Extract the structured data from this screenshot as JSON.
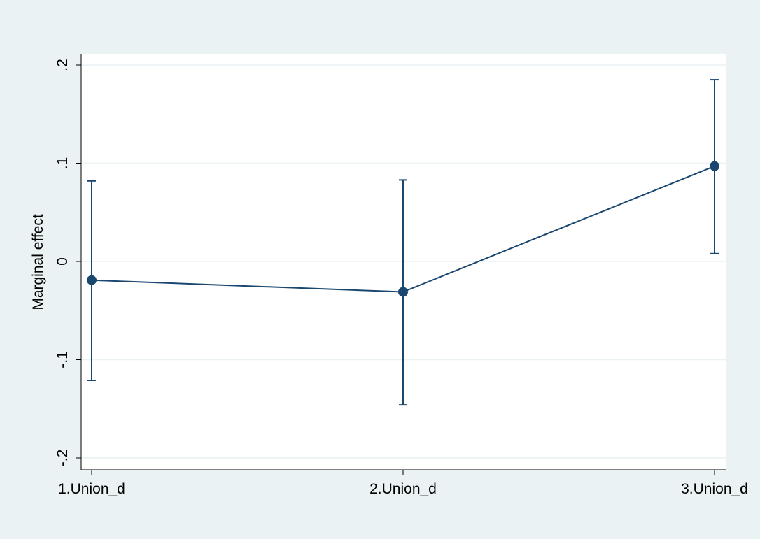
{
  "chart_data": {
    "type": "line",
    "title": "",
    "xlabel": "",
    "ylabel": "Marginal effect",
    "categories": [
      "1.Union_d",
      "2.Union_d",
      "3.Union_d"
    ],
    "series": [
      {
        "values": [
          -0.019,
          -0.031,
          0.097
        ],
        "ci_lower": [
          -0.121,
          -0.146,
          0.008
        ],
        "ci_upper": [
          0.082,
          0.083,
          0.185
        ]
      }
    ],
    "ylim": [
      -0.2,
      0.2
    ],
    "yticks": [
      -0.2,
      -0.1,
      0,
      0.1,
      0.2
    ],
    "ytick_labels": [
      "-.2",
      "-.1",
      "0",
      ".1",
      ".2"
    ],
    "grid": true,
    "colors": {
      "outer_background": "#eaf2f3",
      "plot_background": "#ffffff",
      "grid": "#eaf2f3",
      "series": "#1a476f"
    }
  }
}
